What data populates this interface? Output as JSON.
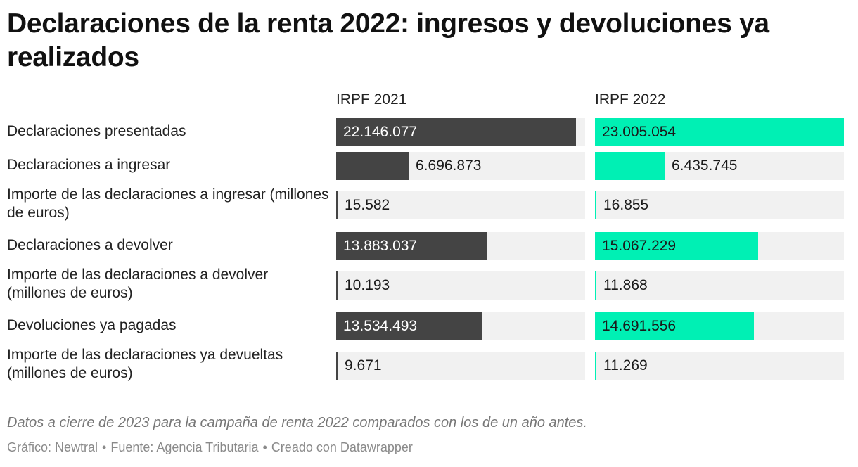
{
  "title": "Declaraciones de la renta 2022: ingresos y devoluciones ya realizados",
  "chart_data": {
    "type": "bar",
    "columns": [
      "IRPF 2021",
      "IRPF 2022"
    ],
    "colors": [
      "#444444",
      "#00f0b4"
    ],
    "rows": [
      {
        "label": "Declaraciones presentadas",
        "values": [
          22146077,
          23005054
        ],
        "display": [
          "22.146.077",
          "23.005.054"
        ],
        "full_scale": 23005054,
        "bar": true
      },
      {
        "label": "Declaraciones a ingresar",
        "values": [
          6696873,
          6435745
        ],
        "display": [
          "6.696.873",
          "6.435.745"
        ],
        "full_scale": 23005054,
        "bar": true
      },
      {
        "label": "Importe de las declaraciones a ingresar (millones de euros)",
        "values": [
          15582,
          16855
        ],
        "display": [
          "15.582",
          "16.855"
        ],
        "bar": false
      },
      {
        "label": "Declaraciones a devolver",
        "values": [
          13883037,
          15067229
        ],
        "display": [
          "13.883.037",
          "15.067.229"
        ],
        "full_scale": 23005054,
        "bar": true
      },
      {
        "label": "Importe de las declaraciones a devolver (millones de euros)",
        "values": [
          10193,
          11868
        ],
        "display": [
          "10.193",
          "11.868"
        ],
        "bar": false
      },
      {
        "label": "Devoluciones ya pagadas",
        "values": [
          13534493,
          14691556
        ],
        "display": [
          "13.534.493",
          "14.691.556"
        ],
        "full_scale": 23005054,
        "bar": true
      },
      {
        "label": "Importe de las declaraciones ya devueltas (millones de euros)",
        "values": [
          9671,
          11269
        ],
        "display": [
          "9.671",
          "11.269"
        ],
        "bar": false
      }
    ]
  },
  "footnote": "Datos a cierre de 2023 para la campaña de renta 2022 comparados con los de un año antes.",
  "credit": {
    "chart": "Gráfico: Newtral",
    "source": "Fuente: Agencia Tributaria",
    "tool": "Creado con Datawrapper",
    "separator": "•"
  }
}
